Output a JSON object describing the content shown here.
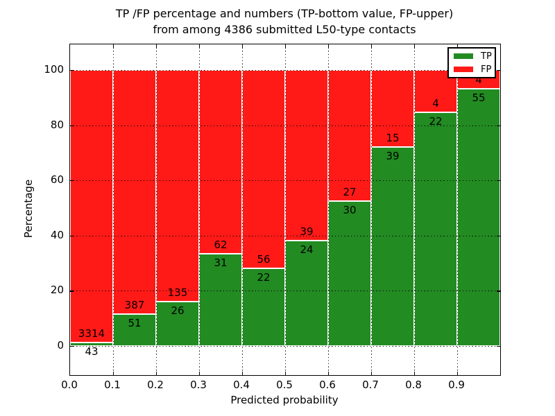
{
  "figure": {
    "title": "TP /FP percentage and numbers (TP-bottom value, FP-upper)\nfrom among 4386 submitted L50-type contacts",
    "xlabel": "Predicted probability",
    "ylabel": "Percentage"
  },
  "legend": {
    "items": [
      {
        "label": "TP",
        "color": "#228b22"
      },
      {
        "label": "FP",
        "color": "#ff1a17"
      }
    ]
  },
  "chart_data": {
    "type": "bar",
    "stacked": true,
    "normalized": "each bin scaled to 100%",
    "title": "TP /FP percentage and numbers (TP-bottom value, FP-upper) from among 4386 submitted L50-type contacts",
    "xlabel": "Predicted probability",
    "ylabel": "Percentage",
    "total_contacts": 4386,
    "bin_edges": [
      0.0,
      0.1,
      0.2,
      0.3,
      0.4,
      0.5,
      0.6,
      0.7,
      0.8,
      0.9,
      1.0
    ],
    "series": [
      {
        "name": "TP",
        "color": "#228b22",
        "counts": [
          43,
          51,
          26,
          31,
          22,
          24,
          30,
          39,
          22,
          55
        ]
      },
      {
        "name": "FP",
        "color": "#ff1a17",
        "counts": [
          3314,
          387,
          135,
          62,
          56,
          39,
          27,
          15,
          4,
          4
        ]
      }
    ],
    "tp_percent": [
      1.3,
      11.6,
      16.1,
      33.3,
      28.2,
      38.1,
      52.6,
      72.2,
      84.6,
      93.2
    ],
    "xtick_labels": [
      "0.0",
      "0.1",
      "0.2",
      "0.3",
      "0.4",
      "0.5",
      "0.6",
      "0.7",
      "0.8",
      "0.9"
    ],
    "ytick_values": [
      0,
      20,
      40,
      60,
      80,
      100
    ],
    "xlim": [
      0.0,
      1.0
    ],
    "ylim": [
      -10.5,
      109.5
    ],
    "grid": "dotted black, drawn over bars",
    "legend_position": "upper right"
  }
}
